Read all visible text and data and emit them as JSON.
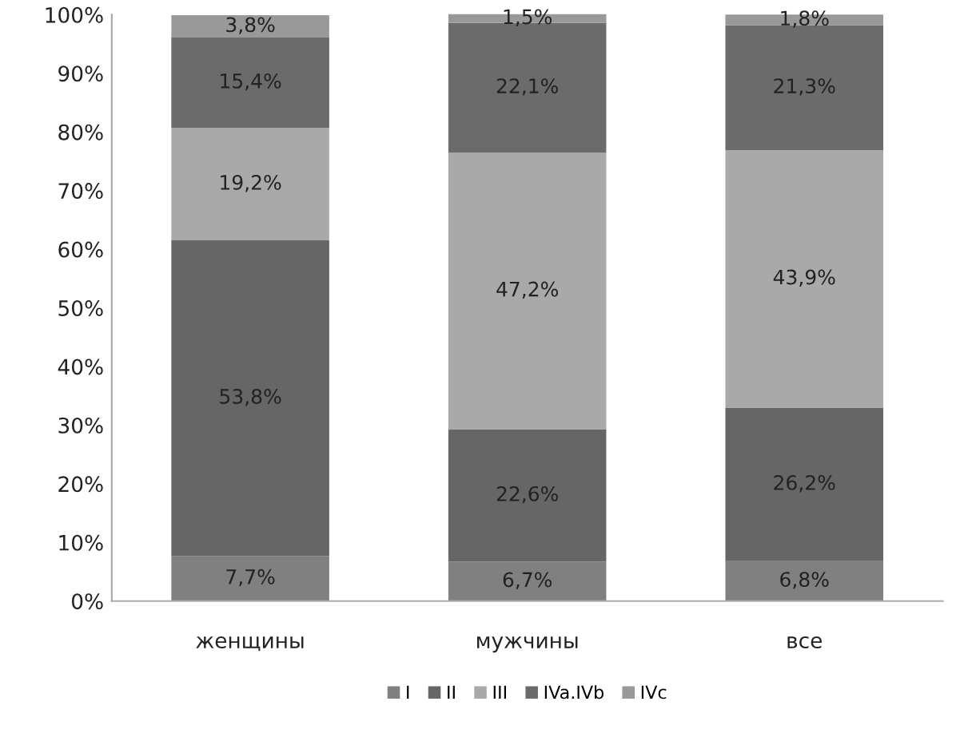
{
  "chart_data": {
    "type": "bar",
    "stacked": true,
    "categories": [
      "женщины",
      "мужчины",
      "все"
    ],
    "series": [
      {
        "name": "I",
        "color": "#808080",
        "values": [
          7.7,
          6.7,
          6.8
        ],
        "value_labels": [
          "7,7%",
          "6,7%",
          "6,8%"
        ]
      },
      {
        "name": "II",
        "color": "#666666",
        "values": [
          53.8,
          22.6,
          26.2
        ],
        "value_labels": [
          "53,8%",
          "22,6%",
          "26,2%"
        ]
      },
      {
        "name": "III",
        "color": "#a9a9a9",
        "values": [
          19.2,
          47.2,
          43.9
        ],
        "value_labels": [
          "19,2%",
          "47,2%",
          "43,9%"
        ]
      },
      {
        "name": "IVa.IVb",
        "color": "#6b6b6b",
        "values": [
          15.4,
          22.1,
          21.3
        ],
        "value_labels": [
          "15,4%",
          "22,1%",
          "21,3%"
        ]
      },
      {
        "name": "IVc",
        "color": "#999999",
        "values": [
          3.8,
          1.5,
          1.8
        ],
        "value_labels": [
          "3,8%",
          "1,5%",
          "1,8%"
        ]
      }
    ],
    "ylim": [
      0,
      100
    ],
    "yticks": [
      {
        "value": 0,
        "label": "0%"
      },
      {
        "value": 10,
        "label": "10%"
      },
      {
        "value": 20,
        "label": "20%"
      },
      {
        "value": 30,
        "label": "30%"
      },
      {
        "value": 40,
        "label": "40%"
      },
      {
        "value": 50,
        "label": "50%"
      },
      {
        "value": 60,
        "label": "60%"
      },
      {
        "value": 70,
        "label": "70%"
      },
      {
        "value": 80,
        "label": "80%"
      },
      {
        "value": 90,
        "label": "90%"
      },
      {
        "value": 100,
        "label": "100%"
      }
    ],
    "grid": false,
    "legend": "bottom"
  }
}
